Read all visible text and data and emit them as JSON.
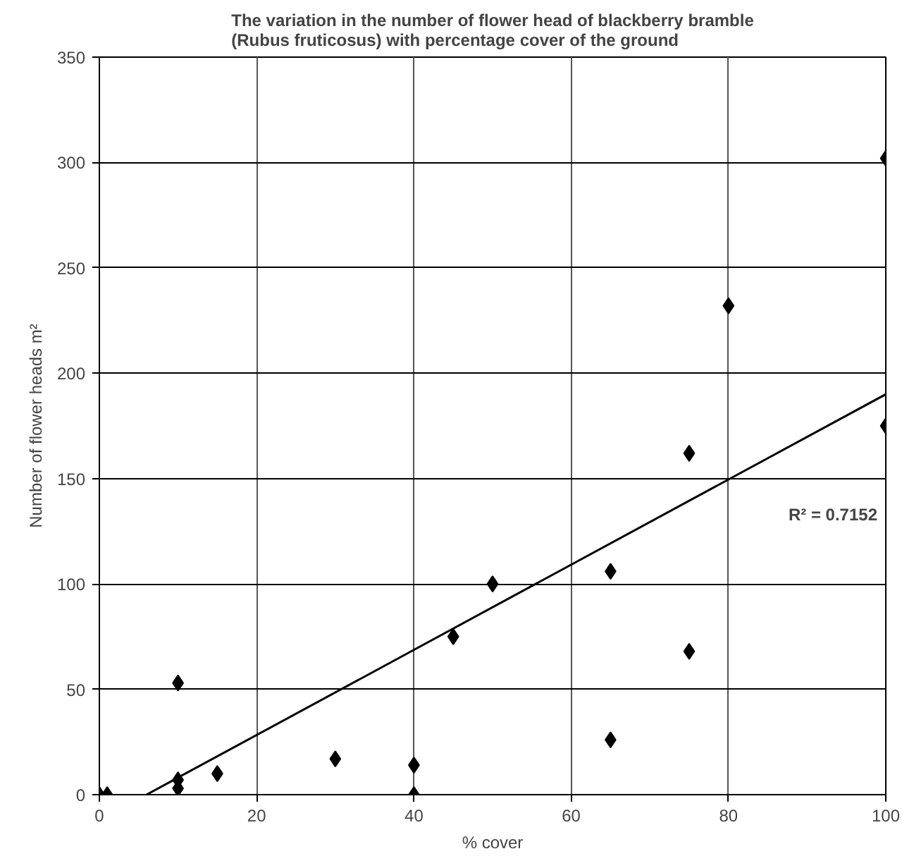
{
  "chart_data": {
    "type": "scatter",
    "title": "The variation in the number of flower head of blackberry bramble\n(Rubus fruticosus) with percentage cover of the ground",
    "xlabel": "% cover",
    "ylabel": "Number of flower heads m²",
    "series": [
      {
        "color": "#000000",
        "marker": "diamond",
        "x": [
          0,
          1,
          10,
          10,
          10,
          15,
          30,
          40,
          40,
          45,
          50,
          65,
          65,
          75,
          75,
          80,
          100,
          100
        ],
        "values": [
          0,
          0,
          53,
          7,
          3,
          10,
          17,
          14,
          0,
          75,
          100,
          106,
          26,
          162,
          68,
          232,
          302,
          175
        ]
      },
      {
        "type": "line",
        "color": "#000000",
        "marker": "none",
        "line_style": "solid",
        "x": [
          6,
          100
        ],
        "values": [
          0,
          190
        ]
      }
    ],
    "annotations": [
      "R² = 0.7152"
    ],
    "xlim": [
      0,
      100
    ],
    "xticks": [
      0,
      20,
      40,
      60,
      80,
      100
    ],
    "ylim": [
      0,
      350
    ],
    "yticks": [
      0,
      50,
      100,
      150,
      200,
      250,
      300,
      350
    ],
    "grid": true
  }
}
